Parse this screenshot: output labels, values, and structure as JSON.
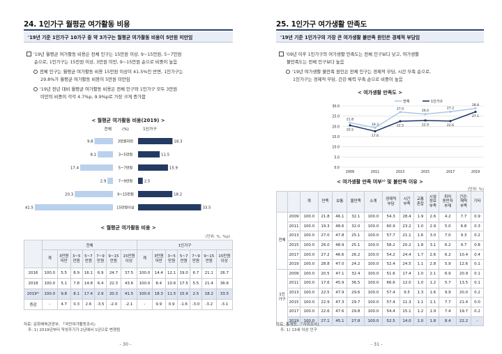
{
  "left": {
    "section_title": "24. 1인가구 월평균 여가활동 비용",
    "headline": "'19년 기준 1인가구 10가구 중 약 3가구는 월평균 여가활동 비용이 5만원 미만임",
    "bullets": [
      {
        "type": "square",
        "lines": [
          "'19년 월평균 여가활동 비용은 전체 인구는 15만원 이상, 9~15만원, 5~7만원",
          "순으로, 1인가구는 15만원 이상, 3만원 미만, 9~15만원 순으로 비중이 높음"
        ]
      },
      {
        "type": "circle",
        "lines": [
          "전체 인구는 월평균 여가활동 비용 15만원 이상이 41.5%인 반면, 1인가구는",
          "29.8%가 월평균 여가활동 비용이 5만원 미만임"
        ]
      },
      {
        "type": "circle",
        "lines": [
          "'19년 전년 대비 월평균 여가활동 비용은 전체 인구와 1인가구 모두 3만원",
          "미만의 비중이 각각 4.7%p, 9.9%p로 가장 크게 증가함"
        ]
      }
    ],
    "chart_title": "< 월평균 여가활동 비용(2019) >",
    "chart_legend": {
      "left": "전체",
      "unit": "(%)",
      "right": "1인가구"
    },
    "chart_data": {
      "type": "bar",
      "categories": [
        "3만원미만",
        "3~5만원",
        "5~7만원",
        "7~9만원",
        "9~15만원",
        "15만원이상"
      ],
      "series": [
        {
          "name": "전체",
          "values": [
            9.8,
            8.1,
            17.4,
            2.9,
            20.3,
            41.5
          ]
        },
        {
          "name": "1인가구",
          "values": [
            18.3,
            11.5,
            15.9,
            2.5,
            18.2,
            33.5
          ]
        }
      ]
    },
    "table_title": "< 월평균 여가활동 비용 >",
    "table_unit": "(단위: %, %p)",
    "table": {
      "group_headers": [
        "전체",
        "1인가구"
      ],
      "sub_headers": [
        "계",
        "3만원\n미만",
        "3~5\n만원",
        "5~7\n만원",
        "7~9\n만원",
        "9~15\n만원",
        "15만원\n이상",
        "계",
        "3만원\n미만",
        "3~5\n만원",
        "5~7\n만원",
        "7~9\n만원",
        "9~15\n만원",
        "15만원\n이상"
      ],
      "rows": [
        {
          "label": "2016",
          "cells": [
            "100.0",
            "5.5",
            "8.9",
            "16.1",
            "6.9",
            "24.7",
            "37.5",
            "100.0",
            "14.4",
            "12.1",
            "19.0",
            "6.7",
            "21.1",
            "26.7"
          ]
        },
        {
          "label": "2018",
          "cells": [
            "100.0",
            "5.1",
            "7.8",
            "14.8",
            "6.4",
            "22.3",
            "43.6",
            "100.0",
            "8.4",
            "10.6",
            "17.5",
            "5.5",
            "21.4",
            "36.6"
          ]
        },
        {
          "label": "2019¹⁾",
          "cells": [
            "100.0",
            "9.8",
            "8.1",
            "17.4",
            "2.9",
            "20.3",
            "41.5",
            "100.0",
            "18.3",
            "11.5",
            "15.9",
            "2.5",
            "18.2",
            "33.5"
          ],
          "highlight": true
        },
        {
          "label": "증감",
          "cells": [
            "-",
            "4.7",
            "0.3",
            "2.6",
            "-3.5",
            "-2.0",
            "-2.1",
            "-",
            "9.9",
            "0.9",
            "-1.6",
            "-3.0",
            "-3.2",
            "-3.1"
          ]
        }
      ]
    },
    "source_lines": [
      "자료: 문화체육관광부, 「국민여가활동조사」",
      "주: 1) 2019년부터 작성주기가 2년에서 1년으로 변경됨"
    ],
    "page_number": "- 30 -"
  },
  "right": {
    "section_title": "25. 1인가구 여가생활 만족도",
    "headline": "'19년 기준 1인가구의 가장 큰 여가생활 불만족 원인은 경제적 부담임",
    "bullets": [
      {
        "type": "square",
        "lines": [
          "'09년 이후 1인가구의 여가생활 만족도는 전체 인구보다 낮고, 여가생활",
          "불만족도는 전체 인구보다 높음"
        ]
      },
      {
        "type": "circle",
        "lines": [
          "'19년 여가생활 불만족 원인은 전체 인구는 경제적 부담, 시간 부족 순으로,",
          "1인가구는 경제적 부담, 건강·체력 부족 순으로 비중이 높음"
        ]
      }
    ],
    "chart_title": "< 여가생활 만족도 >",
    "chart_data": {
      "type": "line",
      "x": [
        "2009",
        "2011",
        "2013",
        "2015",
        "2017",
        "2019"
      ],
      "series": [
        {
          "name": "전체",
          "values": [
            21.8,
            19.3,
            27.0,
            26.0,
            27.2,
            28.8
          ]
        },
        {
          "name": "1인가구",
          "values": [
            20.5,
            17.6,
            22.5,
            22.9,
            22.6,
            27.1
          ]
        }
      ],
      "ylim": [
        0,
        30
      ],
      "yticks": [
        "0.0",
        "5.0",
        "10.0",
        "15.0",
        "20.0",
        "25.0",
        "30.0"
      ],
      "grid": true,
      "legend": "top"
    },
    "table_title": "< 여가생활 만족 여부¹⁾ 및 불만족 이유 >",
    "table_unit": "(단위: %)",
    "table": {
      "headers": [
        "계",
        "만족",
        "보통",
        "불만족",
        "소계",
        "경제적\n부담",
        "시간\n부족",
        "교통\n혼잡",
        "시설\n정보\n부족",
        "취미\n동반자\n부재",
        "건강·\n체력\n부족",
        "기타"
      ],
      "groups": [
        {
          "label": "전체",
          "rows": [
            {
              "year": "2009",
              "cells": [
                "100.0",
                "21.8",
                "46.1",
                "32.1",
                "100.0",
                "54.3",
                "28.4",
                "1.9",
                "2.6",
                "4.2",
                "7.7",
                "0.9"
              ]
            },
            {
              "year": "2011",
              "cells": [
                "100.0",
                "19.3",
                "48.6",
                "32.0",
                "100.0",
                "60.9",
                "23.2",
                "1.0",
                "2.9",
                "5.0",
                "6.8",
                "0.3"
              ]
            },
            {
              "year": "2013",
              "cells": [
                "100.0",
                "27.0",
                "47.8",
                "25.1",
                "100.0",
                "57.7",
                "21.1",
                "1.6",
                "3.0",
                "7.0",
                "9.3",
                "0.2"
              ]
            },
            {
              "year": "2015",
              "cells": [
                "100.0",
                "26.0",
                "48.9",
                "25.1",
                "100.0",
                "58.2",
                "20.2",
                "1.8",
                "3.1",
                "6.2",
                "9.7",
                "0.8"
              ]
            },
            {
              "year": "2017",
              "cells": [
                "100.0",
                "27.2",
                "46.6",
                "26.2",
                "100.0",
                "54.2",
                "24.4",
                "1.7",
                "2.6",
                "6.2",
                "10.4",
                "0.4"
              ]
            },
            {
              "year": "2019",
              "cells": [
                "100.0",
                "28.8",
                "47.0",
                "24.2",
                "100.0",
                "52.4",
                "24.5",
                "1.1",
                "2.8",
                "5.9",
                "12.6",
                "0.1"
              ]
            }
          ]
        },
        {
          "label": "1인\n가구",
          "rows": [
            {
              "year": "2009",
              "cells": [
                "100.0",
                "20.5",
                "47.1",
                "32.4",
                "100.0",
                "51.6",
                "17.4",
                "1.0",
                "2.1",
                "6.9",
                "20.9",
                "0.1"
              ]
            },
            {
              "year": "2011",
              "cells": [
                "100.0",
                "17.6",
                "45.9",
                "36.5",
                "100.0",
                "66.6",
                "12.0",
                "1.0",
                "1.2",
                "5.7",
                "13.5",
                "0.1"
              ]
            },
            {
              "year": "2013",
              "cells": [
                "100.0",
                "22.5",
                "47.9",
                "29.6",
                "100.0",
                "57.4",
                "9.5",
                "1.3",
                "1.6",
                "9.9",
                "20.0",
                "0.2"
              ]
            },
            {
              "year": "2015",
              "cells": [
                "100.0",
                "22.9",
                "47.3",
                "29.7",
                "100.0",
                "57.4",
                "11.3",
                "1.1",
                "1.1",
                "7.7",
                "21.4",
                "0.0"
              ]
            },
            {
              "year": "2017",
              "cells": [
                "100.0",
                "22.6",
                "47.6",
                "29.8",
                "100.0",
                "54.4",
                "15.1",
                "1.2",
                "1.9",
                "7.4",
                "19.7",
                "0.2"
              ]
            },
            {
              "year": "2019",
              "cells": [
                "100.0",
                "27.1",
                "45.1",
                "27.8",
                "100.0",
                "52.5",
                "14.0",
                "1.0",
                "1.8",
                "8.4",
                "22.2",
                "-"
              ],
              "highlight": true
            }
          ]
        }
      ]
    },
    "source_lines": [
      "자료: 통계청, 「사회조사」",
      "주: 1) 13세 이상 인구"
    ],
    "page_number": "- 31 -"
  }
}
